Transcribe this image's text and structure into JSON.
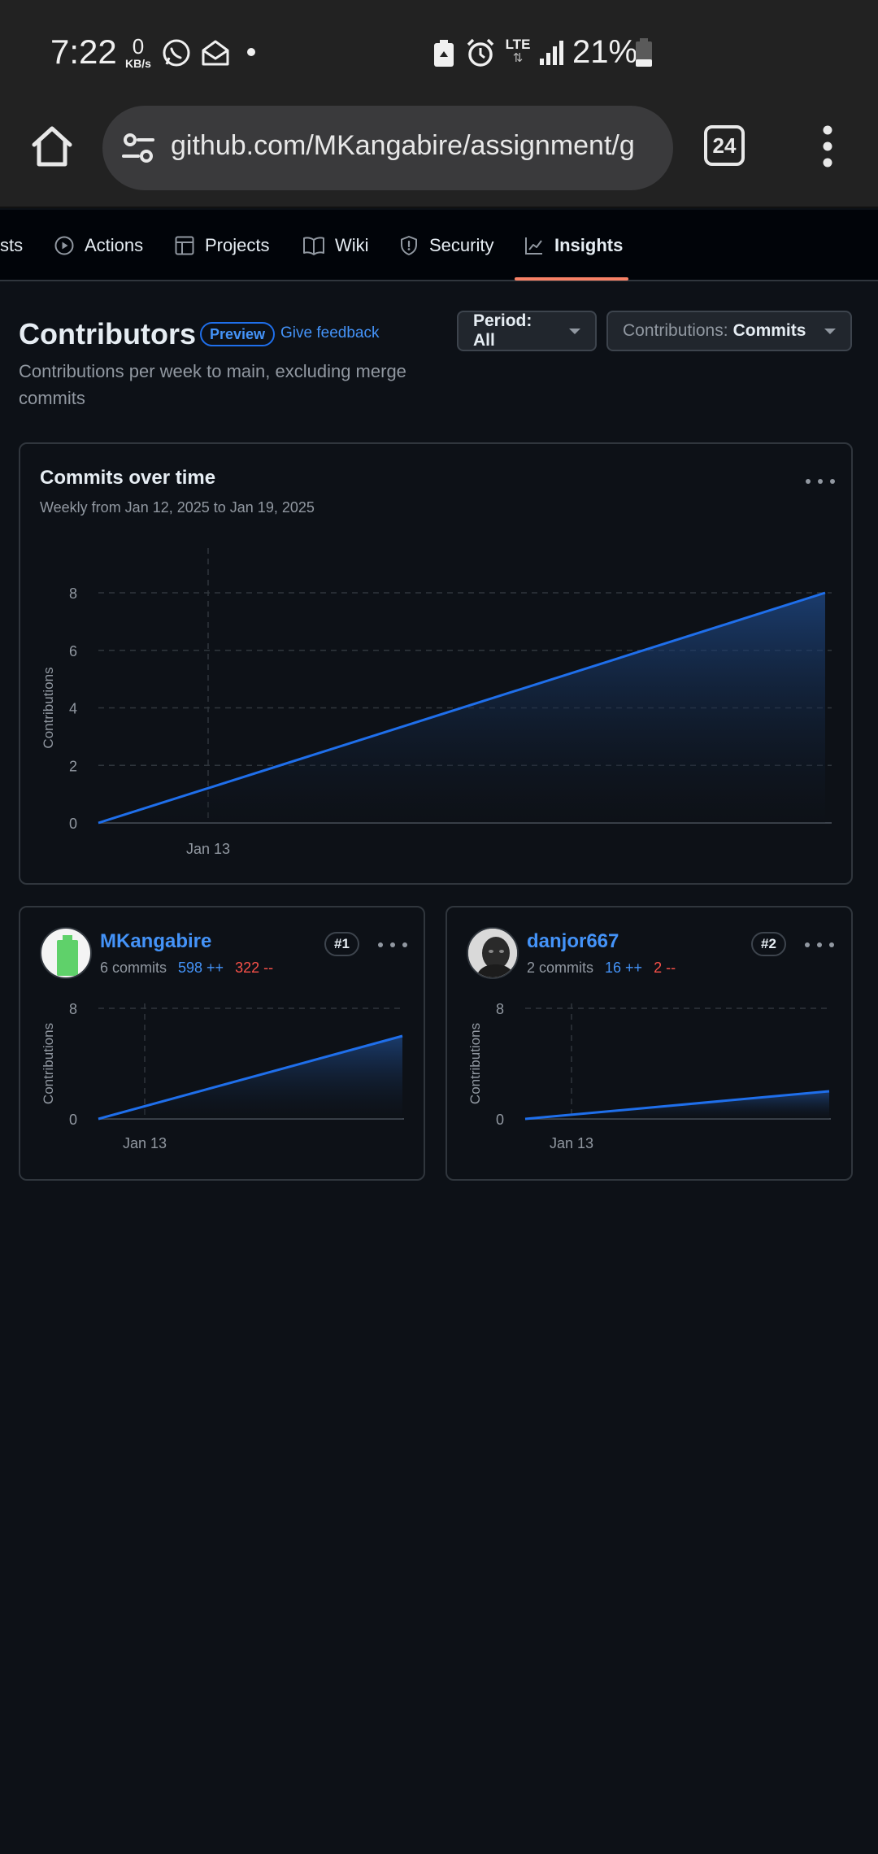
{
  "status_bar": {
    "time": "7:22",
    "net_speed_value": "0",
    "net_speed_unit": "KB/s",
    "network": "LTE",
    "battery": "21%"
  },
  "browser": {
    "url": "github.com/MKangabire/assignment/g",
    "tab_count": "24"
  },
  "repo_nav": {
    "items": [
      {
        "label": "sts",
        "icon": "none"
      },
      {
        "label": "Actions",
        "icon": "play-circle-icon"
      },
      {
        "label": "Projects",
        "icon": "table-icon"
      },
      {
        "label": "Wiki",
        "icon": "book-icon"
      },
      {
        "label": "Security",
        "icon": "shield-icon"
      },
      {
        "label": "Insights",
        "icon": "graph-icon",
        "active": true
      }
    ]
  },
  "header": {
    "title": "Contributors",
    "badge": "Preview",
    "feedback": "Give feedback",
    "subtitle": "Contributions per week to main, excluding merge commits",
    "period_label": "Period: All",
    "contrib_label": "Contributions:",
    "contrib_value": "Commits"
  },
  "main_chart": {
    "title": "Commits over time",
    "subtitle": "Weekly from Jan 12, 2025 to Jan 19, 2025"
  },
  "chart_data": [
    {
      "type": "area",
      "ylabel": "Contributions",
      "x": [
        "Jan 12, 2025",
        "Jan 19, 2025"
      ],
      "values": [
        0,
        8
      ],
      "xticks": [
        "Jan 13"
      ],
      "yticks": [
        0,
        2,
        4,
        6,
        8
      ],
      "ylim": [
        0,
        8
      ],
      "grid": true,
      "color": "#1f6feb"
    },
    {
      "type": "area",
      "ylabel": "Contributions",
      "x": [
        "Jan 12, 2025",
        "Jan 19, 2025"
      ],
      "values": [
        0,
        6
      ],
      "xticks": [
        "Jan 13"
      ],
      "yticks": [
        0,
        8
      ],
      "ylim": [
        0,
        8
      ],
      "grid": true,
      "color": "#1f6feb"
    },
    {
      "type": "area",
      "ylabel": "Contributions",
      "x": [
        "Jan 12, 2025",
        "Jan 19, 2025"
      ],
      "values": [
        0,
        2
      ],
      "xticks": [
        "Jan 13"
      ],
      "yticks": [
        0,
        8
      ],
      "ylim": [
        0,
        8
      ],
      "grid": true,
      "color": "#1f6feb"
    }
  ],
  "contributors": [
    {
      "name": "MKangabire",
      "commits": "6 commits",
      "additions": "598 ++",
      "deletions": "322 --",
      "rank": "#1"
    },
    {
      "name": "danjor667",
      "commits": "2 commits",
      "additions": "16 ++",
      "deletions": "2 --",
      "rank": "#2"
    }
  ],
  "colors": {
    "accent": "#4493f8",
    "deletion": "#f85149",
    "tab_underline": "#f78166",
    "background": "#0d1117"
  }
}
